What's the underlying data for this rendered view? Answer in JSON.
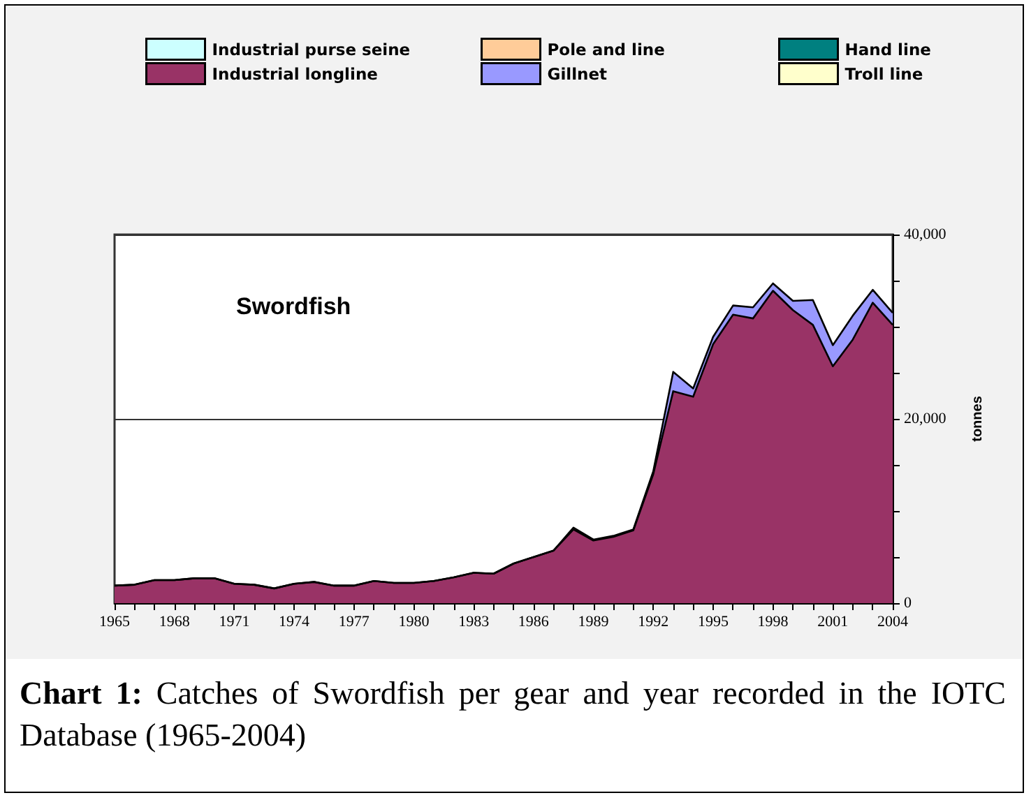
{
  "chart_data": {
    "type": "area",
    "title": "Swordfish",
    "ylabel": "tonnes",
    "stacked": true,
    "legend": "top",
    "grid": "y",
    "marker": "none",
    "annotations": [
      "Chart 1: Catches of Swordfish per gear and year recorded in the IOTC Database (1965-2004)"
    ],
    "x": [
      1965,
      1966,
      1967,
      1968,
      1969,
      1970,
      1971,
      1972,
      1973,
      1974,
      1975,
      1976,
      1977,
      1978,
      1979,
      1980,
      1981,
      1982,
      1983,
      1984,
      1985,
      1986,
      1987,
      1988,
      1989,
      1990,
      1991,
      1992,
      1993,
      1994,
      1995,
      1996,
      1997,
      1998,
      1999,
      2000,
      2001,
      2002,
      2003,
      2004
    ],
    "xlim": [
      1965,
      2004
    ],
    "xticks": [
      1965,
      {
        "value": 1966,
        "label": null
      },
      {
        "value": 1967,
        "label": null
      },
      1968,
      {
        "value": 1969,
        "label": null
      },
      {
        "value": 1970,
        "label": null
      },
      1971,
      {
        "value": 1972,
        "label": null
      },
      {
        "value": 1973,
        "label": null
      },
      1974,
      {
        "value": 1975,
        "label": null
      },
      {
        "value": 1976,
        "label": null
      },
      1977,
      {
        "value": 1978,
        "label": null
      },
      {
        "value": 1979,
        "label": null
      },
      1980,
      {
        "value": 1981,
        "label": null
      },
      {
        "value": 1982,
        "label": null
      },
      1983,
      {
        "value": 1984,
        "label": null
      },
      {
        "value": 1985,
        "label": null
      },
      1986,
      {
        "value": 1987,
        "label": null
      },
      {
        "value": 1988,
        "label": null
      },
      1989,
      {
        "value": 1990,
        "label": null
      },
      {
        "value": 1991,
        "label": null
      },
      1992,
      {
        "value": 1993,
        "label": null
      },
      {
        "value": 1994,
        "label": null
      },
      1995,
      {
        "value": 1996,
        "label": null
      },
      {
        "value": 1997,
        "label": null
      },
      1998,
      {
        "value": 1999,
        "label": null
      },
      {
        "value": 2000,
        "label": null
      },
      2001,
      {
        "value": 2002,
        "label": null
      },
      {
        "value": 2003,
        "label": null
      },
      2004
    ],
    "ylim": [
      0,
      40000
    ],
    "yticks": [
      {
        "value": 0,
        "label": "0"
      },
      {
        "value": 5000,
        "label": null
      },
      {
        "value": 10000,
        "label": null
      },
      {
        "value": 15000,
        "label": null
      },
      {
        "value": 20000,
        "label": "20,000"
      },
      {
        "value": 25000,
        "label": null
      },
      {
        "value": 30000,
        "label": null
      },
      {
        "value": 35000,
        "label": null
      },
      {
        "value": 40000,
        "label": "40,000"
      }
    ],
    "series": [
      {
        "name": "Industrial longline",
        "color": "#993366",
        "values": [
          1900,
          2000,
          2500,
          2500,
          2700,
          2700,
          2100,
          2000,
          1600,
          2100,
          2300,
          1900,
          1900,
          2400,
          2200,
          2200,
          2400,
          2800,
          3300,
          3200,
          4300,
          5000,
          5700,
          8000,
          6800,
          7200,
          7900,
          14000,
          23000,
          22400,
          28100,
          31300,
          30900,
          33900,
          31800,
          30200,
          25700,
          28600,
          32600,
          30200
        ]
      },
      {
        "name": "Gillnet",
        "color": "#9999ff",
        "values": [
          0,
          0,
          0,
          0,
          0,
          0,
          0,
          0,
          0,
          0,
          0,
          0,
          0,
          0,
          0,
          0,
          0,
          0,
          0,
          0,
          0,
          0,
          0,
          200,
          100,
          100,
          100,
          300,
          2100,
          900,
          800,
          1000,
          1200,
          800,
          1000,
          2700,
          2300,
          2600,
          1400,
          1300
        ]
      },
      {
        "name": "Industrial purse seine",
        "color": "#ccffff",
        "values": [
          null,
          null,
          null,
          null,
          null,
          null,
          null,
          null,
          null,
          null,
          null,
          null,
          null,
          null,
          null,
          null,
          null,
          null,
          null,
          null,
          null,
          null,
          null,
          null,
          null,
          null,
          null,
          null,
          null,
          null,
          null,
          null,
          null,
          null,
          null,
          null,
          null,
          null,
          null,
          null
        ]
      },
      {
        "name": "Pole and line",
        "color": "#ffcc99",
        "values": [
          null,
          null,
          null,
          null,
          null,
          null,
          null,
          null,
          null,
          null,
          null,
          null,
          null,
          null,
          null,
          null,
          null,
          null,
          null,
          null,
          null,
          null,
          null,
          null,
          null,
          null,
          null,
          null,
          null,
          null,
          null,
          null,
          null,
          null,
          null,
          null,
          null,
          null,
          null,
          null
        ]
      },
      {
        "name": "Hand line",
        "color": "#008080",
        "values": [
          null,
          null,
          null,
          null,
          null,
          null,
          null,
          null,
          null,
          null,
          null,
          null,
          null,
          null,
          null,
          null,
          null,
          null,
          null,
          null,
          null,
          null,
          null,
          null,
          null,
          null,
          null,
          null,
          null,
          null,
          null,
          null,
          null,
          null,
          null,
          null,
          null,
          null,
          null,
          null
        ]
      },
      {
        "name": "Troll line",
        "color": "#ffffcc",
        "values": [
          null,
          null,
          null,
          null,
          null,
          null,
          null,
          null,
          null,
          null,
          null,
          null,
          null,
          null,
          null,
          null,
          null,
          null,
          null,
          null,
          null,
          null,
          null,
          null,
          null,
          null,
          null,
          null,
          null,
          null,
          null,
          null,
          null,
          null,
          null,
          null,
          null,
          null,
          null,
          null
        ]
      }
    ]
  }
}
